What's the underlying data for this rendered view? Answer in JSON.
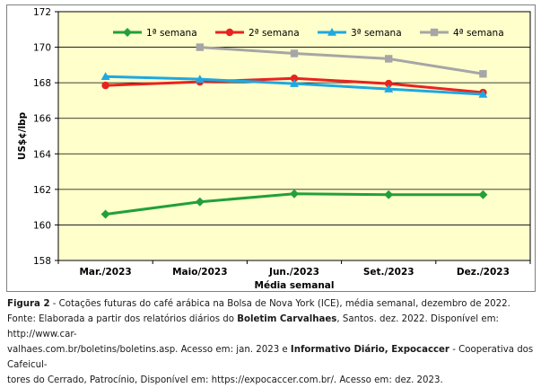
{
  "chart_data": {
    "type": "line",
    "categories": [
      "Mar./2023",
      "Maio/2023",
      "Jun./2023",
      "Set./2023",
      "Dez./2023"
    ],
    "series": [
      {
        "name": "1ª semana",
        "color": "#22a03a",
        "marker": "diamond",
        "values": [
          160.6,
          161.3,
          161.75,
          161.7,
          161.7
        ]
      },
      {
        "name": "2ª semana",
        "color": "#e8231f",
        "marker": "circle",
        "values": [
          167.85,
          168.05,
          168.25,
          167.95,
          167.45
        ]
      },
      {
        "name": "3ª semana",
        "color": "#1fa8e0",
        "marker": "triangle",
        "values": [
          168.35,
          168.2,
          167.95,
          167.65,
          167.35
        ]
      },
      {
        "name": "4ª semana",
        "color": "#a6a6a6",
        "marker": "square",
        "values": [
          null,
          170.0,
          169.65,
          169.35,
          168.5
        ]
      }
    ],
    "ylim": [
      158,
      172
    ],
    "yticks": [
      158,
      160,
      162,
      164,
      166,
      168,
      170,
      172
    ],
    "xlabel": "Média semanal",
    "ylabel": "US$¢/lbp",
    "plot_background": "#ffffcc",
    "grid": true,
    "legend_position": "top"
  },
  "caption": {
    "fig_label": "Figura 2",
    "fig_text": " - Cotações futuras do café arábica na Bolsa de Nova York (ICE), média semanal, dezembro de 2022.",
    "source_prefix": "Fonte: Elaborada a partir dos relatórios diários do ",
    "source_bold1": "Boletim Carvalhaes",
    "source_mid1": ", Santos. dez. 2022. Disponível em: http://www.car-",
    "source_line2a": "valhaes.com.br/boletins/boletins.asp. Acesso em: jan. 2023 e ",
    "source_bold2": "Informativo Diário, Expocaccer",
    "source_line2b": " - Cooperativa dos Cafeicul-",
    "source_line3": "tores do Cerrado, Patrocínio, Disponível em:  https://expocaccer.com.br/. Acesso em: dez. 2023."
  }
}
